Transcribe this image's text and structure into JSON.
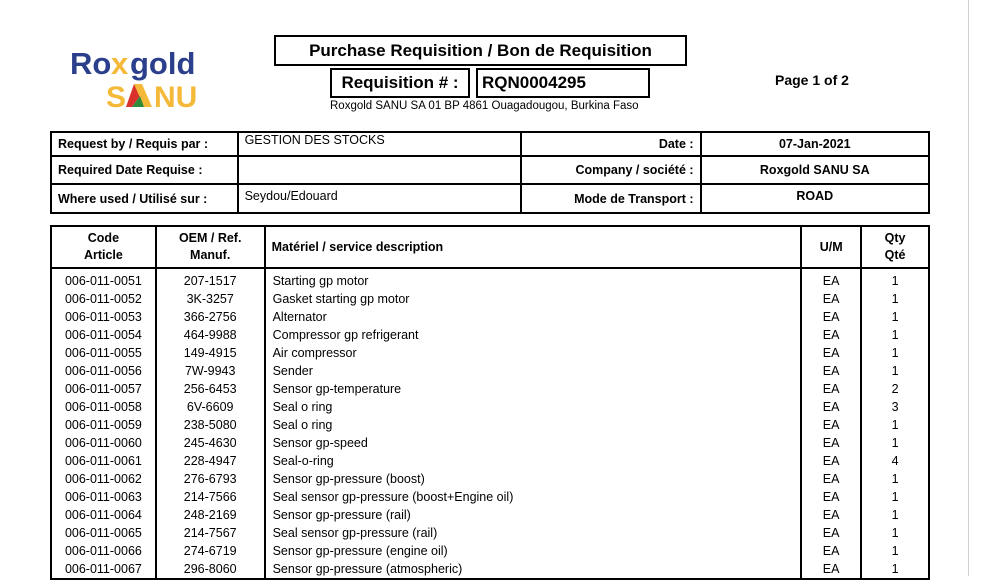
{
  "logo": {
    "text_top": "Roxgold",
    "text_bottom": "SANU",
    "colors": {
      "blue": "#2b3f8c",
      "gold": "#f5b93a",
      "red": "#d9312b",
      "green": "#2e8b3e"
    }
  },
  "header": {
    "title": "Purchase Requisition / Bon de Requisition",
    "req_label": "Requisition # :",
    "req_number": "RQN0004295",
    "address": "Roxgold SANU SA 01 BP 4861 Ouagadougou, Burkina Faso",
    "page": "Page 1 of 2"
  },
  "info": {
    "request_by_label": "Request by / Requis par :",
    "request_by": "GESTION DES STOCKS",
    "date_label": "Date :",
    "date": "07-Jan-2021",
    "required_date_label": "Required Date Requise :",
    "required_date": "",
    "company_label": "Company / société :",
    "company": "Roxgold SANU SA",
    "where_used_label": "Where used / Utilisé sur :",
    "where_used": "Seydou/Edouard",
    "transport_label": "Mode de Transport :",
    "transport": "ROAD"
  },
  "items": {
    "headers": {
      "code_1": "Code",
      "code_2": "Article",
      "oem_1": "OEM / Ref.",
      "oem_2": "Manuf.",
      "desc": "Matériel / service description",
      "um": "U/M",
      "qty_1": "Qty",
      "qty_2": "Qté"
    },
    "rows": [
      [
        "006-011-0051",
        "207-1517",
        "Starting gp motor",
        "EA",
        "1"
      ],
      [
        "006-011-0052",
        "3K-3257",
        "Gasket starting gp motor",
        "EA",
        "1"
      ],
      [
        "006-011-0053",
        "366-2756",
        "Alternator",
        "EA",
        "1"
      ],
      [
        "006-011-0054",
        "464-9988",
        "Compressor gp refrigerant",
        "EA",
        "1"
      ],
      [
        "006-011-0055",
        "149-4915",
        "Air compressor",
        "EA",
        "1"
      ],
      [
        "006-011-0056",
        "7W-9943",
        "Sender",
        "EA",
        "1"
      ],
      [
        "006-011-0057",
        "256-6453",
        "Sensor gp-temperature",
        "EA",
        "2"
      ],
      [
        "006-011-0058",
        "6V-6609",
        "Seal o ring",
        "EA",
        "3"
      ],
      [
        "006-011-0059",
        "238-5080",
        "Seal o ring",
        "EA",
        "1"
      ],
      [
        "006-011-0060",
        "245-4630",
        "Sensor gp-speed",
        "EA",
        "1"
      ],
      [
        "006-011-0061",
        "228-4947",
        "Seal-o-ring",
        "EA",
        "4"
      ],
      [
        "006-011-0062",
        "276-6793",
        "Sensor gp-pressure (boost)",
        "EA",
        "1"
      ],
      [
        "006-011-0063",
        "214-7566",
        "Seal sensor gp-pressure (boost+Engine oil)",
        "EA",
        "1"
      ],
      [
        "006-011-0064",
        "248-2169",
        "Sensor gp-pressure (rail)",
        "EA",
        "1"
      ],
      [
        "006-011-0065",
        "214-7567",
        "Seal sensor gp-pressure (rail)",
        "EA",
        "1"
      ],
      [
        "006-011-0066",
        "274-6719",
        "Sensor gp-pressure (engine oil)",
        "EA",
        "1"
      ],
      [
        "006-011-0067",
        "296-8060",
        "Sensor gp-pressure (atmospheric)",
        "EA",
        "1"
      ]
    ]
  }
}
